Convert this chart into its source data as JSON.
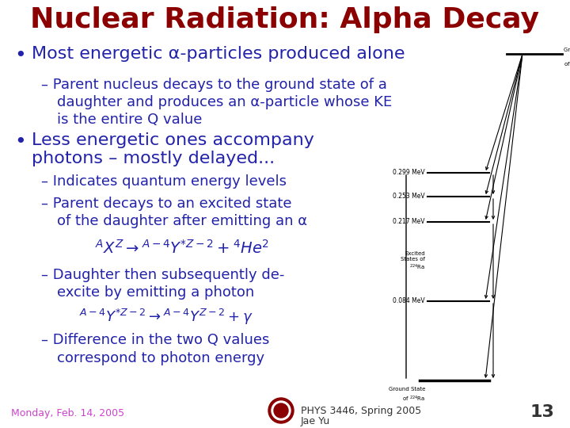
{
  "title": "Nuclear Radiation: Alpha Decay",
  "title_color": "#8B0000",
  "title_fontsize": 26,
  "bg_color": "#FFFFFF",
  "bullet_color": "#2222aa",
  "date_color": "#cc44cc",
  "footer_color": "#333333",
  "page_num": "13",
  "date": "Monday, Feb. 14, 2005",
  "course": "PHYS 3446, Spring 2005",
  "course2": "Jae Yu"
}
